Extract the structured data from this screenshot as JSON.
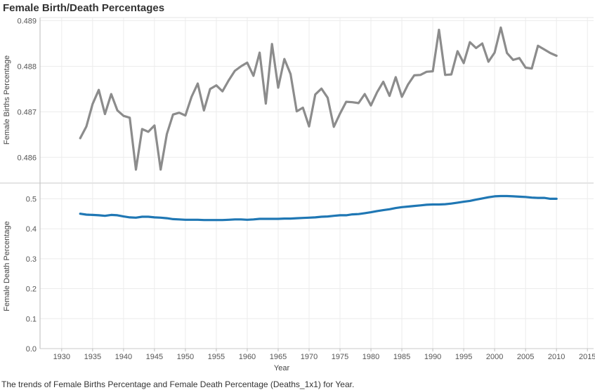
{
  "title": "Female Birth/Death Percentages",
  "caption": "The trends of Female Births Percentage and Female Death Percentage (Deaths_1x1) for Year.",
  "chart_data": [
    {
      "type": "line",
      "ylabel": "Female Births Percentage",
      "xlabel": "",
      "xlim": [
        1926.5,
        2016
      ],
      "ylim": [
        0.48545,
        0.48907
      ],
      "yticks": [
        "0.486",
        "0.487",
        "0.488",
        "0.489"
      ],
      "ytick_values": [
        0.486,
        0.487,
        0.488,
        0.489
      ],
      "color": "#8c8c8c",
      "grid": true,
      "series": [
        {
          "x": [
            1933,
            1934,
            1935,
            1936,
            1937,
            1938,
            1939,
            1940,
            1941,
            1942,
            1943,
            1944,
            1945,
            1946,
            1947,
            1948,
            1949,
            1950,
            1951,
            1952,
            1953,
            1954,
            1955,
            1956,
            1957,
            1958,
            1959,
            1960,
            1961,
            1962,
            1963,
            1964,
            1965,
            1966,
            1967,
            1968,
            1969,
            1970,
            1971,
            1972,
            1973,
            1974,
            1975,
            1976,
            1977,
            1978,
            1979,
            1980,
            1981,
            1982,
            1983,
            1984,
            1985,
            1986,
            1987,
            1988,
            1989,
            1990,
            1991,
            1992,
            1993,
            1994,
            1995,
            1996,
            1997,
            1998,
            1999,
            2000,
            2001,
            2002,
            2003,
            2004,
            2005,
            2006,
            2007,
            2008,
            2009,
            2010
          ],
          "values": [
            0.48642,
            0.48668,
            0.48717,
            0.48748,
            0.48695,
            0.48739,
            0.48703,
            0.48691,
            0.48687,
            0.48573,
            0.48662,
            0.48656,
            0.4867,
            0.48573,
            0.48651,
            0.48694,
            0.48698,
            0.48692,
            0.48733,
            0.48762,
            0.48703,
            0.4875,
            0.48758,
            0.48745,
            0.48769,
            0.4879,
            0.488,
            0.48808,
            0.48779,
            0.4883,
            0.48718,
            0.48849,
            0.48753,
            0.48816,
            0.48783,
            0.48701,
            0.48709,
            0.48668,
            0.48738,
            0.48751,
            0.48731,
            0.48667,
            0.48696,
            0.48722,
            0.48721,
            0.48719,
            0.48739,
            0.48714,
            0.48743,
            0.48766,
            0.48735,
            0.48776,
            0.48733,
            0.4876,
            0.4878,
            0.48781,
            0.48788,
            0.48789,
            0.4888,
            0.48781,
            0.48782,
            0.48833,
            0.48807,
            0.48853,
            0.4884,
            0.4885,
            0.4881,
            0.4883,
            0.48885,
            0.48829,
            0.48814,
            0.48818,
            0.48797,
            0.48795,
            0.48845,
            0.48837,
            0.48829,
            0.48823
          ]
        }
      ]
    },
    {
      "type": "line",
      "ylabel": "Female Death Percentage",
      "xlabel": "Year",
      "xlim": [
        1926.5,
        2016
      ],
      "ylim": [
        0,
        0.55
      ],
      "yticks": [
        "0.0",
        "0.1",
        "0.2",
        "0.3",
        "0.4",
        "0.5"
      ],
      "ytick_values": [
        0,
        0.1,
        0.2,
        0.3,
        0.4,
        0.5
      ],
      "xticks": [
        "1930",
        "1935",
        "1940",
        "1945",
        "1950",
        "1955",
        "1960",
        "1965",
        "1970",
        "1975",
        "1980",
        "1985",
        "1990",
        "1995",
        "2000",
        "2005",
        "2010",
        "2015"
      ],
      "xtick_values": [
        1930,
        1935,
        1940,
        1945,
        1950,
        1955,
        1960,
        1965,
        1970,
        1975,
        1980,
        1985,
        1990,
        1995,
        2000,
        2005,
        2010,
        2015
      ],
      "color": "#1f77b4",
      "grid": true,
      "series": [
        {
          "x": [
            1933,
            1934,
            1935,
            1936,
            1937,
            1938,
            1939,
            1940,
            1941,
            1942,
            1943,
            1944,
            1945,
            1946,
            1947,
            1948,
            1949,
            1950,
            1951,
            1952,
            1953,
            1954,
            1955,
            1956,
            1957,
            1958,
            1959,
            1960,
            1961,
            1962,
            1963,
            1964,
            1965,
            1966,
            1967,
            1968,
            1969,
            1970,
            1971,
            1972,
            1973,
            1974,
            1975,
            1976,
            1977,
            1978,
            1979,
            1980,
            1981,
            1982,
            1983,
            1984,
            1985,
            1986,
            1987,
            1988,
            1989,
            1990,
            1991,
            1992,
            1993,
            1994,
            1995,
            1996,
            1997,
            1998,
            1999,
            2000,
            2001,
            2002,
            2003,
            2004,
            2005,
            2006,
            2007,
            2008,
            2009,
            2010
          ],
          "values": [
            0.45,
            0.447,
            0.446,
            0.445,
            0.443,
            0.446,
            0.445,
            0.441,
            0.438,
            0.437,
            0.44,
            0.44,
            0.438,
            0.437,
            0.435,
            0.432,
            0.431,
            0.43,
            0.43,
            0.43,
            0.429,
            0.429,
            0.429,
            0.429,
            0.43,
            0.431,
            0.431,
            0.43,
            0.431,
            0.433,
            0.433,
            0.433,
            0.433,
            0.434,
            0.434,
            0.435,
            0.436,
            0.437,
            0.438,
            0.44,
            0.441,
            0.443,
            0.445,
            0.445,
            0.448,
            0.449,
            0.452,
            0.455,
            0.459,
            0.462,
            0.465,
            0.469,
            0.472,
            0.474,
            0.476,
            0.478,
            0.48,
            0.481,
            0.481,
            0.482,
            0.484,
            0.487,
            0.49,
            0.493,
            0.497,
            0.501,
            0.505,
            0.508,
            0.509,
            0.509,
            0.508,
            0.507,
            0.506,
            0.504,
            0.503,
            0.503,
            0.5,
            0.5
          ]
        }
      ]
    }
  ]
}
